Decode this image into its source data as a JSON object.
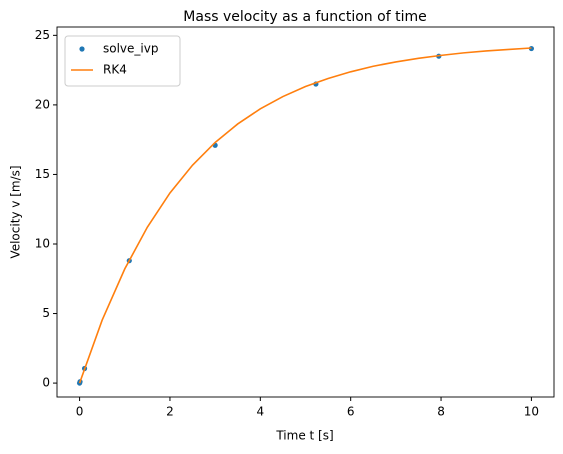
{
  "chart_data": {
    "type": "scatter-line",
    "title": "Mass velocity as a function of time",
    "x_label": "Time t [s]",
    "y_label": "Velocity v [m/s]",
    "xlim": [
      -0.5,
      10.5
    ],
    "xticks": [
      0,
      2,
      4,
      6,
      8,
      10
    ],
    "ylim": [
      -1.0,
      25.6
    ],
    "yticks": [
      0,
      5,
      10,
      15,
      20,
      25
    ],
    "legend": "upper left",
    "series": [
      {
        "name": "solve_ivp",
        "kind": "scatter",
        "color": "#1f77b4",
        "x": [
          0,
          0.01,
          0.11,
          1.1,
          3.0,
          5.23,
          7.95,
          10
        ],
        "values": [
          0,
          0.1,
          1.05,
          8.8,
          17.1,
          21.5,
          23.5,
          24.05
        ]
      },
      {
        "name": "RK4",
        "kind": "line",
        "color": "#ff7f0e",
        "x": [
          0,
          0.5,
          1,
          1.5,
          2,
          2.5,
          3,
          3.5,
          4,
          4.5,
          5,
          5.5,
          6,
          6.5,
          7,
          7.5,
          8,
          8.5,
          9,
          9.5,
          10
        ],
        "values": [
          0,
          4.53,
          8.21,
          11.21,
          13.67,
          15.67,
          17.3,
          18.63,
          19.72,
          20.6,
          21.32,
          21.9,
          22.38,
          22.78,
          23.09,
          23.35,
          23.56,
          23.74,
          23.88,
          23.99,
          24.09
        ]
      }
    ]
  }
}
